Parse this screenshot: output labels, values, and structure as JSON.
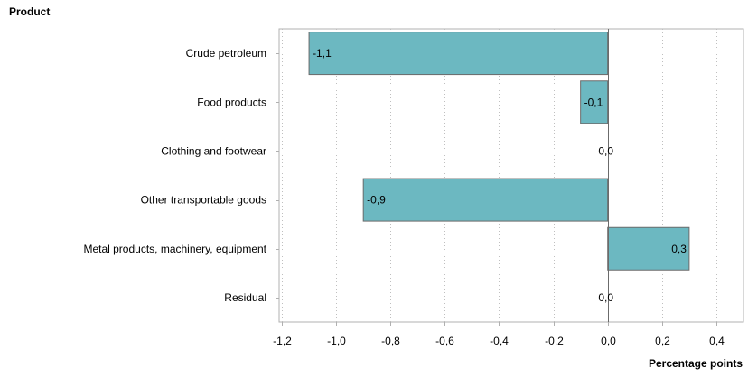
{
  "chart_data": {
    "type": "bar",
    "orientation": "horizontal",
    "categories": [
      "Crude petroleum",
      "Food products",
      "Clothing and footwear",
      "Other transportable goods",
      "Metal products, machinery, equipment",
      "Residual"
    ],
    "values": [
      -1.1,
      -0.1,
      0.0,
      -0.9,
      0.3,
      0.0
    ],
    "data_labels": [
      "-1,1",
      "-0,1",
      "0,0",
      "-0,9",
      "0,3",
      "0,0"
    ],
    "xlim": [
      -1.21,
      0.5
    ],
    "x_ticks": [
      -1.2,
      -1.0,
      -0.8,
      -0.6,
      -0.4,
      -0.2,
      0.0,
      0.2,
      0.4
    ],
    "x_tick_labels": [
      "-1,2",
      "-1,0",
      "-0,8",
      "-0,6",
      "-0,4",
      "-0,2",
      "0,0",
      "0,2",
      "0,4"
    ],
    "xlabel": "Percentage points",
    "ylabel": "Product",
    "grid": "vertical dotted",
    "legend": "none",
    "colors": {
      "bar_fill": "#6cb8c1",
      "bar_stroke": "#6b6b6b",
      "grid": "#bfbfbf",
      "frame": "#b0b0b0",
      "zero_line": "#6b6b6b"
    }
  }
}
